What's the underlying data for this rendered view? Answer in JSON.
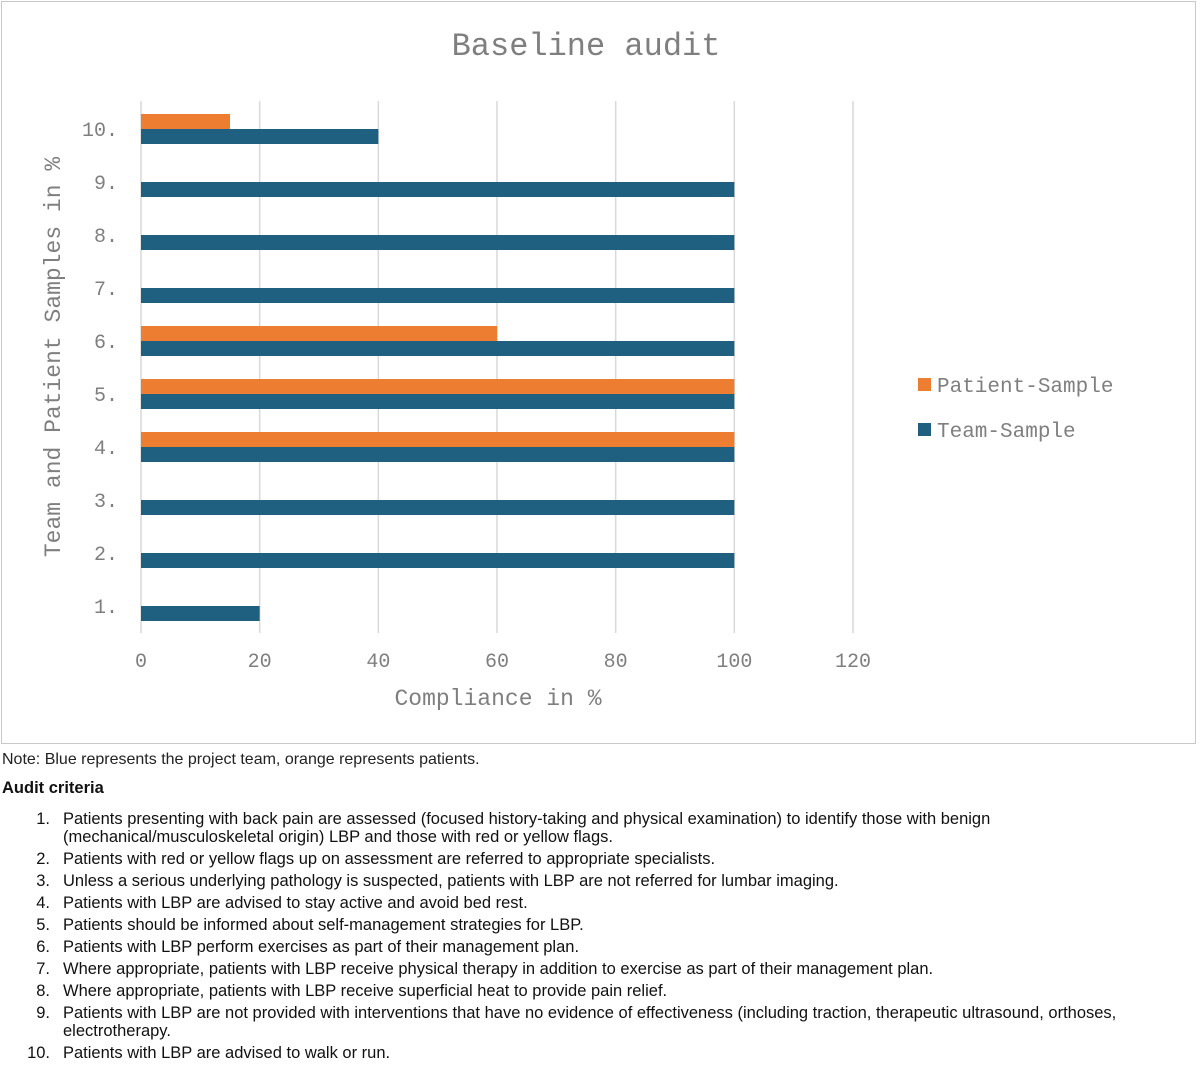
{
  "chart_data": {
    "type": "bar",
    "orientation": "horizontal",
    "title": "Baseline audit",
    "xlabel": "Compliance in %",
    "ylabel": "Team and Patient Samples in %",
    "xlim": [
      0,
      120
    ],
    "xticks": [
      "0",
      "20",
      "40",
      "60",
      "80",
      "100",
      "120"
    ],
    "categories": [
      "1.",
      "2.",
      "3.",
      "4.",
      "5.",
      "6.",
      "7.",
      "8.",
      "9.",
      "10."
    ],
    "series": [
      {
        "name": "Patient-Sample",
        "color": "#ED7D31",
        "values": [
          null,
          null,
          null,
          100,
          100,
          60,
          null,
          null,
          null,
          15
        ]
      },
      {
        "name": "Team-Sample",
        "color": "#1F5F80",
        "values": [
          20,
          100,
          100,
          100,
          100,
          100,
          100,
          100,
          100,
          40
        ]
      }
    ],
    "legend": [
      "Patient-Sample",
      "Team-Sample"
    ],
    "legend_position": "right",
    "grid": true
  },
  "note": "Note: Blue represents the project team, orange represents patients.",
  "criteria_heading": "Audit criteria",
  "criteria": [
    {
      "num": "1.",
      "text": "Patients presenting with back pain are assessed (focused history-taking and physical examination) to identify those with benign (mechanical/musculoskeletal origin) LBP and those with red or yellow flags."
    },
    {
      "num": "2.",
      "text": "Patients with red or yellow flags up on assessment are referred to appropriate specialists."
    },
    {
      "num": "3.",
      "text": "Unless a serious underlying pathology is suspected, patients with LBP are not referred for lumbar imaging."
    },
    {
      "num": "4.",
      "text": "Patients with LBP are advised to stay active and avoid bed rest."
    },
    {
      "num": "5.",
      "text": "Patients should be informed about self-management strategies for LBP."
    },
    {
      "num": "6.",
      "text": "Patients with LBP perform exercises as part of their management plan."
    },
    {
      "num": "7.",
      "text": "Where appropriate, patients with LBP receive physical therapy in addition to exercise as part of their management plan."
    },
    {
      "num": "8.",
      "text": "Where appropriate, patients with LBP receive superficial heat to provide pain relief."
    },
    {
      "num": "9.",
      "text": "Patients with LBP are not provided with interventions that have no evidence of effectiveness (including traction, therapeutic ultrasound, orthoses, electrotherapy."
    },
    {
      "num": "10.",
      "text": "Patients with LBP are advised to walk or run."
    }
  ]
}
